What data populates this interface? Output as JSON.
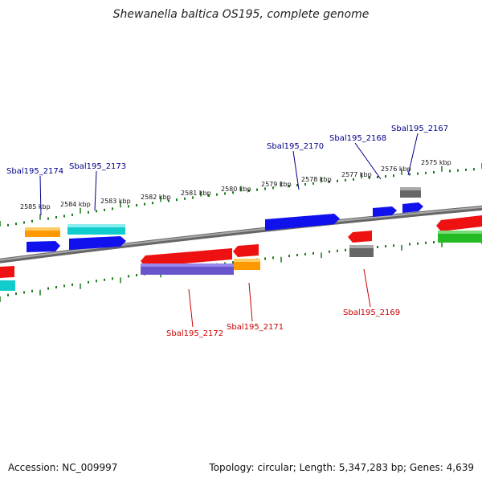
{
  "title": "Shewanella baltica OS195, complete genome",
  "footer": {
    "accession": "Accession: NC_009997",
    "summary": "Topology: circular; Length: 5,347,283 bp; Genes: 4,639"
  },
  "scale_ticks": [
    {
      "label": "2585 kbp"
    },
    {
      "label": "2584 kbp"
    },
    {
      "label": "2583 kbp"
    },
    {
      "label": "2582 kbp"
    },
    {
      "label": "2581 kbp"
    },
    {
      "label": "2580 kbp"
    },
    {
      "label": "2579 kbp"
    },
    {
      "label": "2578 kbp"
    },
    {
      "label": "2577 kbp"
    },
    {
      "label": "2576 kbp"
    },
    {
      "label": "2575 kbp"
    }
  ],
  "gene_labels": [
    {
      "text": "Sbal195_2174",
      "strand": "plus",
      "color": "#00008b"
    },
    {
      "text": "Sbal195_2173",
      "strand": "plus",
      "color": "#00008b"
    },
    {
      "text": "Sbal195_2170",
      "strand": "plus",
      "color": "#00008b"
    },
    {
      "text": "Sbal195_2168",
      "strand": "plus",
      "color": "#00008b"
    },
    {
      "text": "Sbal195_2167",
      "strand": "plus",
      "color": "#00008b"
    },
    {
      "text": "Sbal195_2172",
      "strand": "minus",
      "color": "#cc0000"
    },
    {
      "text": "Sbal195_2171",
      "strand": "minus",
      "color": "#cc0000"
    },
    {
      "text": "Sbal195_2169",
      "strand": "minus",
      "color": "#cc0000"
    }
  ],
  "colors": {
    "backbone": "#8a8a8a",
    "tick": "#1a7a1a",
    "red": "#ee1111",
    "orange": "#ff9900",
    "cyan": "#11cccc",
    "blue": "#1111ee",
    "purple": "#6655cc",
    "gray": "#666666",
    "green": "#22bb22"
  }
}
